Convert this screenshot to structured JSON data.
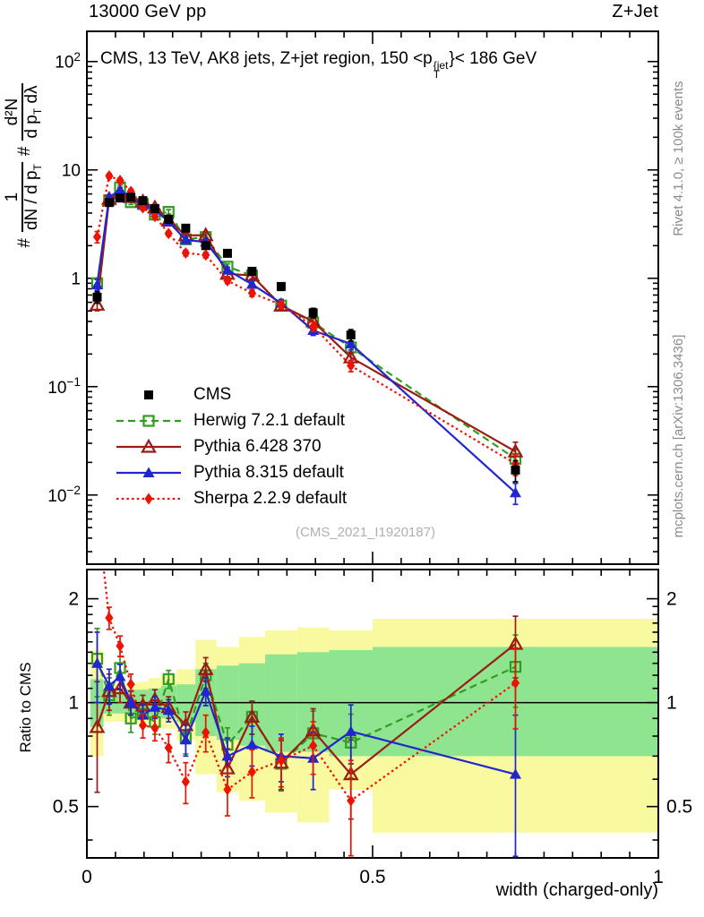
{
  "header": {
    "left": "13000 GeV pp",
    "right": "Z+Jet"
  },
  "panel": {
    "title_prefix": "CMS, 13 TeV, AK8 jets, Z+jet region, 150 <p",
    "title_sup": "{jet",
    "title_sub": "T",
    "title_suffix": "}< 186 GeV",
    "watermark": "(CMS_2021_I1920187)",
    "right_note_top": "Rivet 4.1.0, ≥ 100k events",
    "right_note_bottom": "mcplots.cern.ch [arXiv:1306.3436]"
  },
  "ylabel": {
    "hash1": "#",
    "f1_num": "1",
    "f1_den_pre": "dN / d p",
    "f1_den_sub": "T",
    "hash2": "#",
    "f2_num": "d²N",
    "f2_den_pre": "d p",
    "f2_den_sub": "T",
    "f2_den_post": " dλ"
  },
  "labels": {
    "ratio_y": "Ratio to CMS",
    "x": "width (charged-only)"
  },
  "chart_data": {
    "type": "line",
    "title": "CMS, 13 TeV, AK8 jets, Z+jet region, 150 < pT{jet} < 186 GeV",
    "xlabel": "width (charged-only)",
    "ylabel": "# 1/(dN/dpT) # d2N/(dpT dlambda)",
    "ratio_ylabel": "Ratio to CMS",
    "x_range": [
      0,
      1
    ],
    "main_ylog_range": [
      0.0023,
      190
    ],
    "ratio_ylog_range": [
      0.355,
      2.43
    ],
    "legend_position": "inside-left-middle",
    "x": [
      0.018,
      0.039,
      0.058,
      0.077,
      0.098,
      0.119,
      0.143,
      0.173,
      0.208,
      0.246,
      0.289,
      0.34,
      0.396,
      0.462,
      0.75
    ],
    "bin_edges": [
      0.006,
      0.029,
      0.048,
      0.067,
      0.087,
      0.108,
      0.13,
      0.157,
      0.19,
      0.227,
      0.266,
      0.312,
      0.368,
      0.424,
      0.5,
      1.0
    ],
    "main_err_frac": [
      0.12,
      0.05,
      0.05,
      0.05,
      0.05,
      0.05,
      0.05,
      0.06,
      0.06,
      0.06,
      0.07,
      0.08,
      0.1,
      0.12,
      0.22
    ],
    "ratio_err": [
      0.3,
      0.13,
      0.1,
      0.08,
      0.07,
      0.07,
      0.07,
      0.08,
      0.1,
      0.09,
      0.1,
      0.11,
      0.13,
      0.16,
      0.3
    ],
    "series": [
      {
        "name": "CMS",
        "color": "#000000",
        "marker": "square-filled",
        "line": "none",
        "main": [
          0.67,
          5.0,
          5.5,
          5.6,
          5.2,
          4.4,
          3.5,
          2.9,
          2.0,
          1.7,
          1.16,
          0.84,
          0.48,
          0.3,
          0.017
        ]
      },
      {
        "name": "Herwig 7.2.1 default",
        "color": "#2f9e20",
        "marker": "square-open",
        "line": "dashed",
        "main": [
          0.9,
          5.25,
          6.9,
          5.04,
          4.84,
          3.87,
          4.1,
          2.29,
          2.4,
          1.28,
          1.06,
          0.56,
          0.39,
          0.23,
          0.0216
        ],
        "ratio": [
          1.34,
          1.05,
          1.26,
          0.9,
          0.93,
          0.88,
          1.17,
          0.79,
          1.2,
          0.755,
          0.91,
          0.665,
          0.815,
          0.766,
          1.27
        ]
      },
      {
        "name": "Pythia 6.428 370",
        "color": "#9b1b15",
        "marker": "triangle-open",
        "line": "solid",
        "main": [
          0.57,
          5.4,
          6.05,
          5.6,
          5.1,
          4.49,
          3.4,
          2.49,
          2.5,
          1.1,
          1.06,
          0.56,
          0.4,
          0.186,
          0.0252
        ],
        "ratio": [
          0.85,
          1.08,
          1.1,
          1.0,
          0.98,
          1.02,
          0.97,
          0.86,
          1.25,
          0.645,
          0.91,
          0.67,
          0.83,
          0.62,
          1.48
        ]
      },
      {
        "name": "Pythia 8.315 default",
        "color": "#2126cf",
        "marker": "triangle-filled",
        "line": "solid",
        "main": [
          0.87,
          5.6,
          6.55,
          5.6,
          4.78,
          4.27,
          3.33,
          2.26,
          2.16,
          1.19,
          0.88,
          0.59,
          0.33,
          0.248,
          0.0105
        ],
        "ratio": [
          1.3,
          1.12,
          1.19,
          1.0,
          0.92,
          0.97,
          0.95,
          0.78,
          1.08,
          0.7,
          0.755,
          0.7,
          0.69,
          0.825,
          0.62
        ]
      },
      {
        "name": "Sherpa 2.2.9 default",
        "color": "#ec1300",
        "marker": "diamond-filled",
        "line": "dotted",
        "main": [
          2.41,
          8.8,
          8.0,
          6.33,
          4.47,
          3.72,
          2.59,
          1.71,
          1.64,
          0.95,
          0.73,
          0.57,
          0.36,
          0.156,
          0.0194
        ],
        "ratio": [
          3.6,
          1.76,
          1.46,
          1.13,
          0.86,
          0.845,
          0.74,
          0.59,
          0.82,
          0.56,
          0.63,
          0.68,
          0.75,
          0.52,
          1.14
        ]
      }
    ],
    "bands": {
      "yellow_color": "#f9f9a0",
      "green_color": "#8fe48f",
      "yellow_lo": [
        0.7,
        0.88,
        0.88,
        0.88,
        0.87,
        0.85,
        0.84,
        0.78,
        0.62,
        0.55,
        0.52,
        0.48,
        0.45,
        0.56,
        0.42
      ],
      "yellow_hi": [
        1.42,
        1.13,
        1.13,
        1.14,
        1.15,
        1.18,
        1.2,
        1.25,
        1.52,
        1.45,
        1.55,
        1.62,
        1.65,
        1.62,
        1.75
      ],
      "green_lo": [
        0.85,
        0.93,
        0.93,
        0.93,
        0.92,
        0.92,
        0.9,
        0.88,
        0.8,
        0.78,
        0.75,
        0.72,
        0.72,
        0.7,
        0.7
      ],
      "green_hi": [
        1.17,
        1.08,
        1.08,
        1.09,
        1.09,
        1.1,
        1.12,
        1.13,
        1.25,
        1.28,
        1.3,
        1.38,
        1.4,
        1.42,
        1.45
      ]
    },
    "main_yticks": [
      {
        "v": 100,
        "label": "10^2"
      },
      {
        "v": 10,
        "label": "10"
      },
      {
        "v": 1,
        "label": "1"
      },
      {
        "v": 0.1,
        "label": "10^-1"
      },
      {
        "v": 0.01,
        "label": "10^-2"
      }
    ],
    "ratio_yticks": [
      {
        "v": 2,
        "label": "2"
      },
      {
        "v": 1,
        "label": "1"
      },
      {
        "v": 0.5,
        "label": "0.5"
      }
    ],
    "xticks": [
      {
        "v": 0,
        "label": "0"
      },
      {
        "v": 0.5,
        "label": "0.5"
      },
      {
        "v": 1,
        "label": "1"
      }
    ],
    "ratio_reference": 1
  }
}
